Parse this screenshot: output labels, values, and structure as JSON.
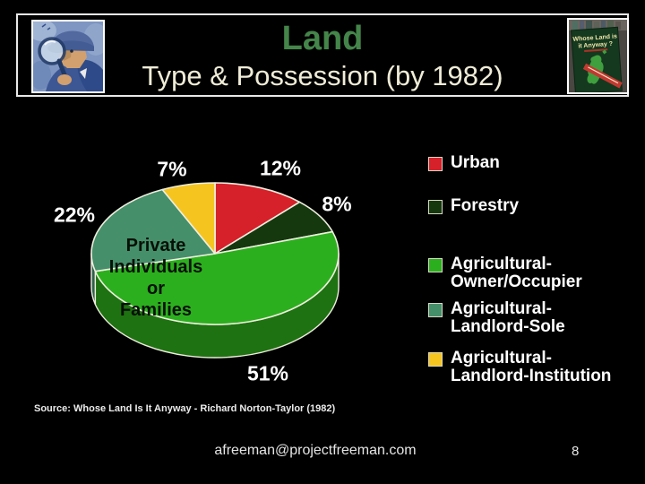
{
  "slide": {
    "title": "Land",
    "subtitle": "Type & Possession (by 1982)",
    "source": "Source: Whose Land Is It Anyway - Richard Norton-Taylor (1982)",
    "footer_email": "afreeman@projectfreeman.com",
    "page_number": "8",
    "title_color": "#44854A",
    "subtitle_color": "#EFECD7"
  },
  "header": {
    "left_image": "detective-with-magnifying-glass-illustration",
    "right_image": "book-cover-photo",
    "book_cover_title": "Whose Land is it Anyway ?"
  },
  "chart_data": {
    "type": "pie",
    "style": "3d",
    "title": "Land Type & Possession (by 1982)",
    "labels": [
      "Urban",
      "Forestry",
      "Agricultural-Owner/Occupier",
      "Agricultural-Landlord-Sole",
      "Agricultural-Landlord-Institution"
    ],
    "values": [
      12,
      8,
      51,
      22,
      7
    ],
    "pct_labels": [
      "12%",
      "8%",
      "51%",
      "22%",
      "7%"
    ],
    "colors": [
      "#D6202A",
      "#15380F",
      "#2CAF1E",
      "#458F6A",
      "#F5C41F"
    ],
    "side_colors": [
      "#8c1218",
      "#0c2408",
      "#1E7211",
      "#2E604A",
      "#a8820f"
    ],
    "outline_color": "#EFEEDF",
    "start_angle_deg": 0,
    "direction": "clockwise",
    "center_label": "Private\nIndividuals\nor\nFamilies",
    "legend_position": "right",
    "legend": [
      {
        "label": "Urban",
        "color": "#D6202A"
      },
      {
        "label": "Forestry",
        "color": "#15380F"
      },
      {
        "label": "Agricultural-\nOwner/Occupier",
        "color": "#2CAF1E"
      },
      {
        "label": "Agricultural-\nLandlord-Sole",
        "color": "#458F6A"
      },
      {
        "label": "Agricultural-\nLandlord-Institution",
        "color": "#F5C41F"
      }
    ]
  }
}
